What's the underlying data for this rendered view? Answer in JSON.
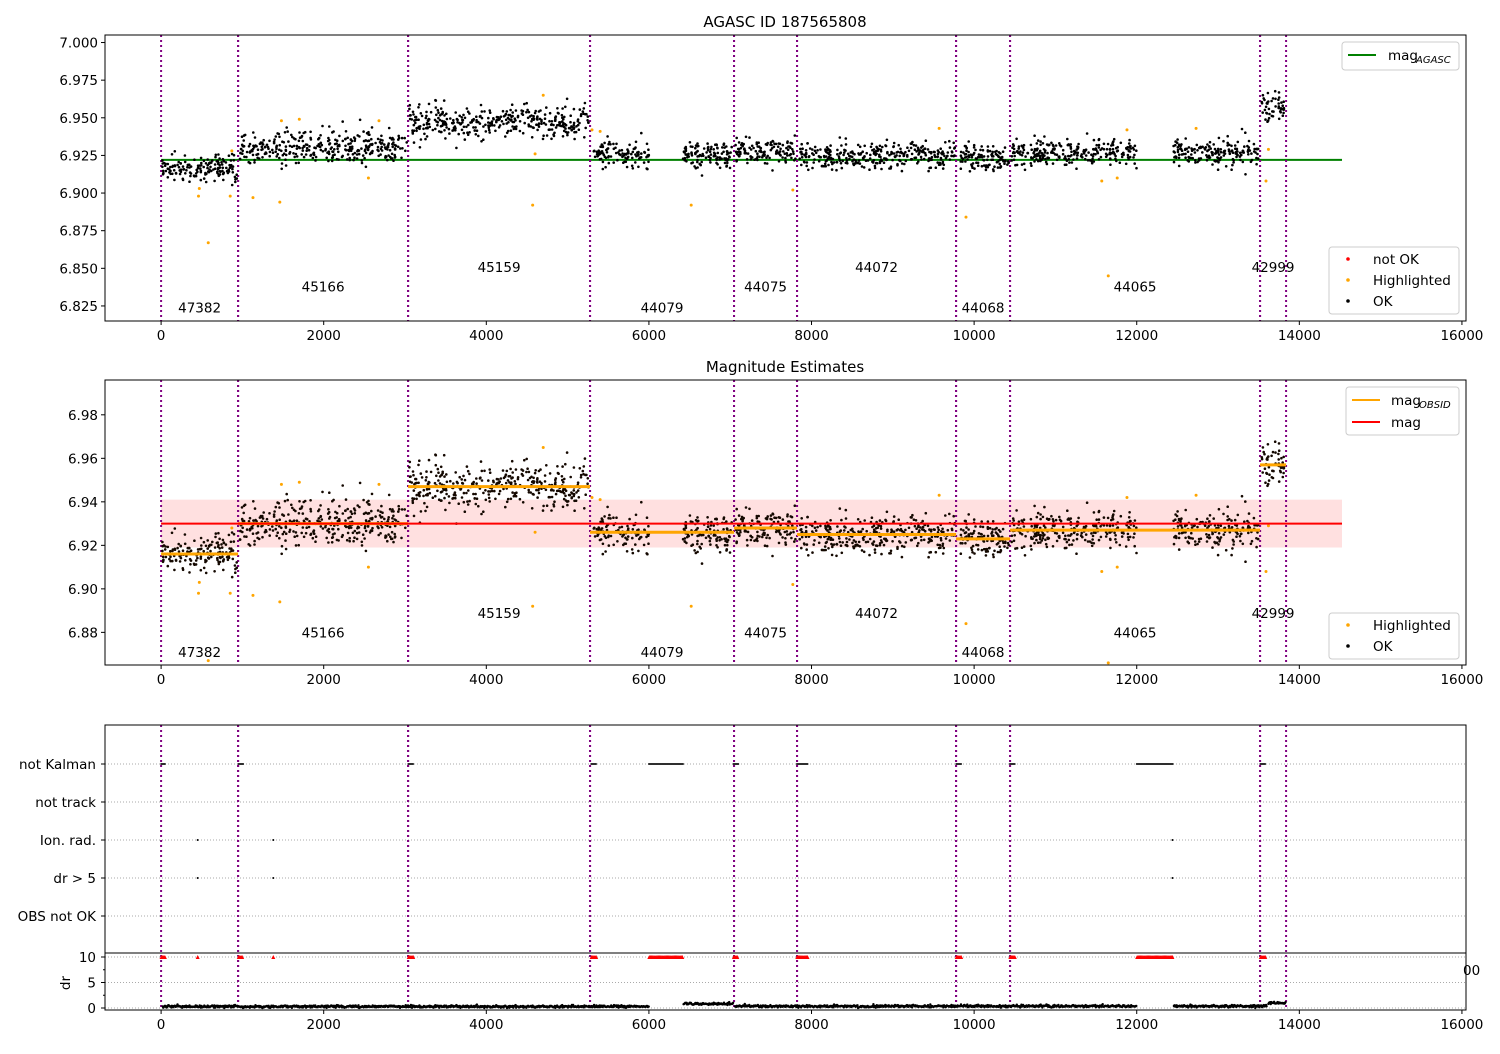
{
  "chart_data": [
    {
      "type": "scatter",
      "title": "AGASC ID 187565808",
      "xlim": [
        -690,
        16050
      ],
      "ylim": [
        6.815,
        7.005
      ],
      "xticks": [
        "0",
        "2000",
        "4000",
        "6000",
        "8000",
        "10000",
        "12000",
        "14000",
        "16000"
      ],
      "yticks": [
        "6.825",
        "6.850",
        "6.875",
        "6.900",
        "6.925",
        "6.950",
        "6.975",
        "7.000"
      ],
      "agasc_mag": 6.922,
      "legend_top": {
        "label_main": "mag",
        "label_sub": "AGASC",
        "color": "#008000",
        "placement": "top-right"
      },
      "legend_bottom": {
        "placement": "bottom-right",
        "items": [
          {
            "label": "not OK",
            "color": "#ff0000"
          },
          {
            "label": "Highlighted",
            "color": "#ffa500"
          },
          {
            "label": "OK",
            "color": "#000000"
          }
        ]
      }
    },
    {
      "type": "scatter",
      "title": "Magnitude Estimates",
      "xlim": [
        -690,
        16050
      ],
      "ylim": [
        6.865,
        6.996
      ],
      "xticks": [
        "0",
        "2000",
        "4000",
        "6000",
        "8000",
        "10000",
        "12000",
        "14000",
        "16000"
      ],
      "yticks": [
        "6.88",
        "6.90",
        "6.92",
        "6.94",
        "6.96",
        "6.98"
      ],
      "mag": 6.93,
      "mag_band": [
        6.919,
        6.941
      ],
      "legend_top": {
        "placement": "top-right",
        "items": [
          {
            "label_main": "mag",
            "label_sub": "OBSID",
            "color": "#ffa500"
          },
          {
            "label_main": "mag",
            "label_sub": "",
            "color": "#ff0000"
          }
        ]
      },
      "legend_bottom": {
        "placement": "bottom-right",
        "items": [
          {
            "label": "Highlighted",
            "color": "#ffa500"
          },
          {
            "label": "OK",
            "color": "#000000"
          }
        ]
      }
    },
    {
      "type": "scatter",
      "categories": [
        "not Kalman",
        "not track",
        "Ion. rad.",
        "dr > 5",
        "OBS not OK"
      ],
      "dr_ylabel": "dr",
      "dr_yticks": [
        "0",
        "5",
        "10"
      ],
      "xticks": [
        "0",
        "2000",
        "4000",
        "6000",
        "8000",
        "10000",
        "12000",
        "14000",
        "16000"
      ],
      "clipped_label": "00",
      "not_kalman_ranges": [
        [
          0,
          50
        ],
        [
          950,
          1010
        ],
        [
          3040,
          3110
        ],
        [
          5290,
          5360
        ],
        [
          6000,
          6420
        ],
        [
          7040,
          7100
        ],
        [
          7820,
          7960
        ],
        [
          9780,
          9850
        ],
        [
          10440,
          10510
        ],
        [
          12000,
          12450
        ],
        [
          13520,
          13590
        ]
      ],
      "ion_rad_times": [
        450,
        1380,
        12440
      ],
      "dr_gt5_times": [
        450,
        1380,
        12440
      ],
      "dr_levels": [
        {
          "start": 0,
          "end": 6400,
          "dr": 0.3
        },
        {
          "start": 6400,
          "end": 7040,
          "dr": 0.8
        },
        {
          "start": 7040,
          "end": 13600,
          "dr": 0.35
        },
        {
          "start": 13600,
          "end": 13837,
          "dr": 1.0
        }
      ]
    }
  ],
  "obsids": [
    {
      "obsid": "47382",
      "start": 0,
      "end": 947,
      "mean": 6.916,
      "std": 0.0045,
      "gaps": []
    },
    {
      "obsid": "45166",
      "start": 947,
      "end": 3038,
      "mean": 6.93,
      "std": 0.0055,
      "gaps": []
    },
    {
      "obsid": "45159",
      "start": 3038,
      "end": 5276,
      "mean": 6.947,
      "std": 0.0055,
      "gaps": []
    },
    {
      "obsid": "44079",
      "start": 5276,
      "end": 7047,
      "mean": 6.926,
      "std": 0.0045,
      "gaps": [
        [
          6000,
          6420
        ]
      ]
    },
    {
      "obsid": "44075",
      "start": 7047,
      "end": 7822,
      "mean": 6.928,
      "std": 0.0045,
      "gaps": []
    },
    {
      "obsid": "44072",
      "start": 7822,
      "end": 9778,
      "mean": 6.925,
      "std": 0.0045,
      "gaps": []
    },
    {
      "obsid": "44068",
      "start": 9778,
      "end": 10442,
      "mean": 6.923,
      "std": 0.0045,
      "gaps": []
    },
    {
      "obsid": "44065",
      "start": 10442,
      "end": 13517,
      "mean": 6.927,
      "std": 0.0045,
      "gaps": [
        [
          12000,
          12450
        ]
      ]
    },
    {
      "obsid": "42999",
      "start": 13517,
      "end": 13837,
      "mean": 6.957,
      "std": 0.0055,
      "gaps": []
    }
  ],
  "highlighted_points": [
    [
      460,
      6.898
    ],
    [
      470,
      6.903
    ],
    [
      580,
      6.867
    ],
    [
      850,
      6.898
    ],
    [
      870,
      6.928
    ],
    [
      1130,
      6.897
    ],
    [
      1460,
      6.894
    ],
    [
      1480,
      6.948
    ],
    [
      1700,
      6.949
    ],
    [
      2550,
      6.91
    ],
    [
      2680,
      6.948
    ],
    [
      4570,
      6.892
    ],
    [
      4600,
      6.926
    ],
    [
      4700,
      6.965
    ],
    [
      5300,
      6.942
    ],
    [
      5400,
      6.941
    ],
    [
      6520,
      6.892
    ],
    [
      7770,
      6.902
    ],
    [
      9570,
      6.943
    ],
    [
      9900,
      6.884
    ],
    [
      11570,
      6.908
    ],
    [
      11650,
      6.845
    ],
    [
      11760,
      6.91
    ],
    [
      11880,
      6.942
    ],
    [
      12730,
      6.943
    ],
    [
      13620,
      6.929
    ],
    [
      13590,
      6.908
    ]
  ]
}
